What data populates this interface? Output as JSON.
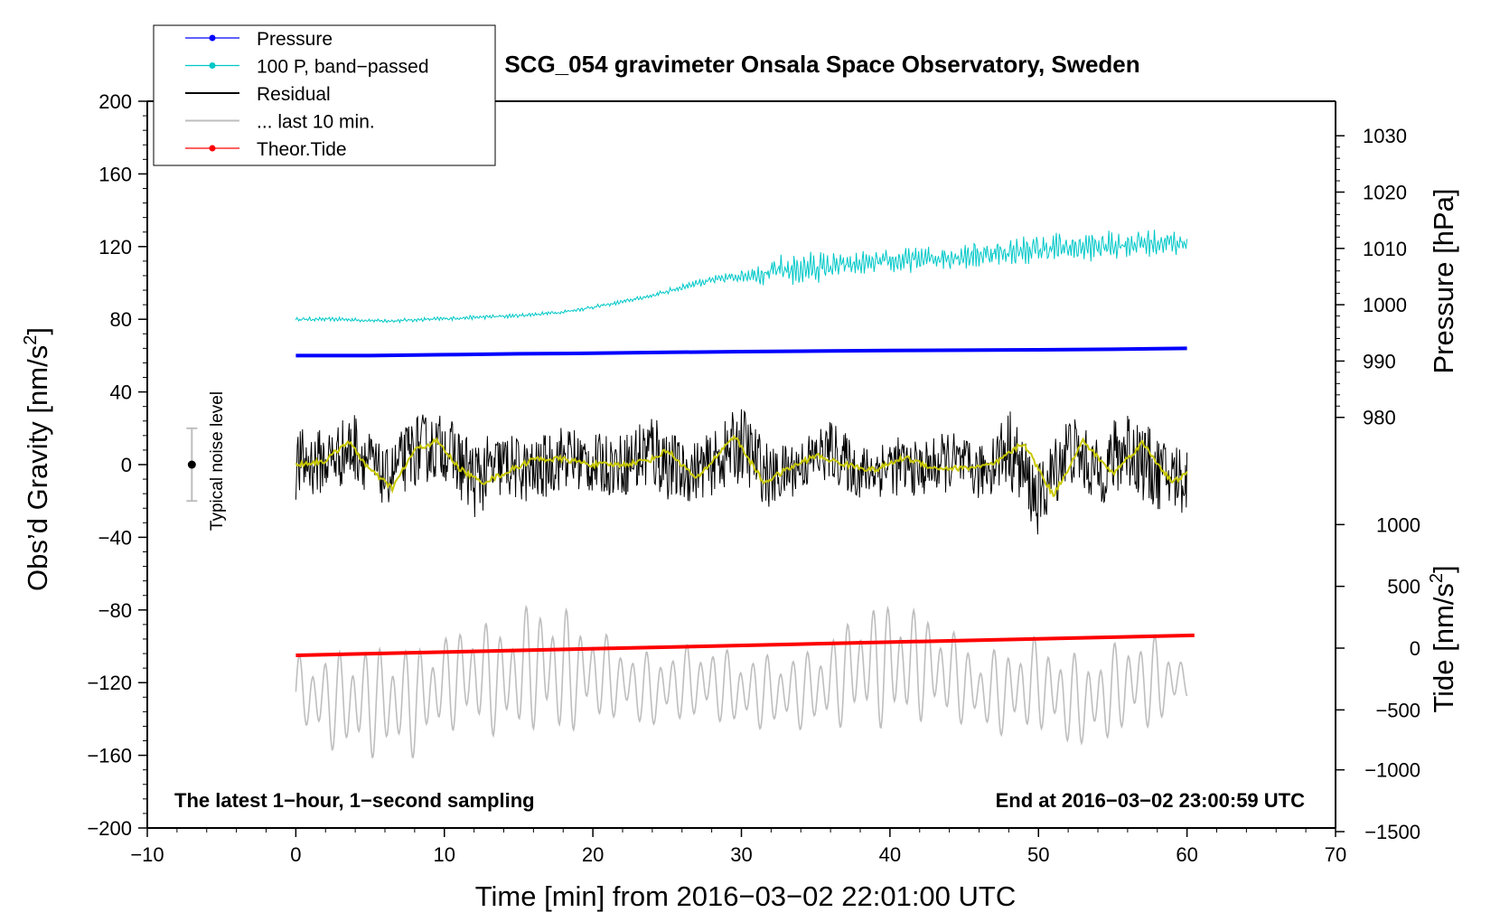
{
  "chart_data": {
    "type": "line",
    "title": "SCG_054 gravimeter Onsala Space Observatory, Sweden",
    "xlabel": "Time [min] from 2016−03−02 22:01:00 UTC",
    "ylabel": "Obs’d Gravity [nm/s",
    "ylabel_sup": "2",
    "ylabel_end": "]",
    "y2label": "Pressure [hPa]",
    "y3label": "Tide [nm/s",
    "y3label_sup": "2",
    "y3label_end": "]",
    "xlim": [
      -10,
      70
    ],
    "ylim": [
      -200,
      200
    ],
    "x_ticks": [
      -10,
      0,
      10,
      20,
      30,
      40,
      50,
      60,
      70
    ],
    "x_tick_labels": [
      "−10",
      "0",
      "10",
      "20",
      "30",
      "40",
      "50",
      "60",
      "70"
    ],
    "y_ticks": [
      200,
      160,
      120,
      80,
      40,
      0,
      -40,
      -80,
      -120,
      -160,
      -200
    ],
    "y_tick_labels": [
      "200",
      "160",
      "120",
      "80",
      "40",
      "0",
      "−40",
      "−80",
      "−120",
      "−160",
      "−200"
    ],
    "pressure_ticks": [
      {
        "value": 1030,
        "gravity": 181
      },
      {
        "value": 1020,
        "gravity": 150
      },
      {
        "value": 1010,
        "gravity": 119
      },
      {
        "value": 1000,
        "gravity": 88
      },
      {
        "value": 990,
        "gravity": 57
      },
      {
        "value": 980,
        "gravity": 26
      }
    ],
    "pressure_tick_labels": [
      "1030",
      "1020",
      "1010",
      "1000",
      "990",
      "980"
    ],
    "tide_ticks": [
      {
        "value": 1000,
        "gravity": -33
      },
      {
        "value": 500,
        "gravity": -67
      },
      {
        "value": 0,
        "gravity": -101
      },
      {
        "value": -500,
        "gravity": -135
      },
      {
        "value": -1000,
        "gravity": -168
      },
      {
        "value": -1500,
        "gravity": -202
      }
    ],
    "tide_tick_labels": [
      "1000",
      "500",
      "0",
      "−500",
      "−1000",
      "−1500"
    ],
    "bottom_left_note": "The latest 1−hour, 1−second sampling",
    "bottom_right_note": "End at 2016−03−02 23:00:59 UTC",
    "noise_label": "Typical noise level",
    "noise_bar": {
      "x": -7,
      "center": 0,
      "low": -20,
      "high": 20
    },
    "legend": [
      {
        "label": "Pressure",
        "color": "#0000ff",
        "marker": true
      },
      {
        "label": "100 P, band−passed",
        "color": "#00c8c8",
        "marker": true
      },
      {
        "label": "Residual",
        "color": "#000000",
        "marker": false
      },
      {
        "label": "... last 10 min.",
        "color": "#bebebe",
        "marker": false
      },
      {
        "label": "Theor.Tide",
        "color": "#ff0000",
        "marker": true
      }
    ],
    "series": [
      {
        "name": "Pressure",
        "color": "#0000ff",
        "x": [
          0,
          5,
          10,
          15,
          20,
          25,
          30,
          35,
          40,
          45,
          50,
          55,
          60
        ],
        "y": [
          60,
          60,
          60.5,
          61,
          61.3,
          61.8,
          62.2,
          62.5,
          62.8,
          63,
          63.2,
          63.5,
          64
        ]
      },
      {
        "name": "100 P, band−passed",
        "color": "#00c8c8",
        "x": [
          0,
          3,
          6,
          9,
          12,
          15,
          18,
          21,
          24,
          27,
          30,
          33,
          36,
          39,
          42,
          45,
          48,
          51,
          54,
          57,
          60
        ],
        "y": [
          80,
          80,
          79,
          80,
          81,
          82,
          84,
          88,
          93,
          100,
          104,
          107,
          109,
          111,
          113,
          115,
          117,
          119,
          120,
          122,
          122
        ],
        "amplitude": [
          1,
          1,
          1,
          1,
          1,
          1,
          1,
          1,
          1,
          2,
          3,
          9,
          7,
          6,
          6,
          7,
          7,
          8,
          7,
          7,
          6
        ]
      },
      {
        "name": "Residual",
        "color": "#000000",
        "x": [
          0,
          2,
          4,
          6,
          8,
          10,
          12,
          14,
          16,
          18,
          20,
          22,
          24,
          26,
          28,
          30,
          32,
          34,
          36,
          38,
          40,
          42,
          44,
          46,
          48,
          50,
          52,
          54,
          56,
          58,
          60
        ],
        "y": [
          0,
          2,
          10,
          -8,
          8,
          10,
          -8,
          0,
          -5,
          5,
          0,
          0,
          8,
          -5,
          0,
          12,
          -8,
          0,
          8,
          -5,
          0,
          -3,
          2,
          -5,
          10,
          -20,
          10,
          -5,
          10,
          -5,
          -8
        ],
        "amplitude": [
          20,
          18,
          20,
          15,
          20,
          18,
          22,
          18,
          18,
          18,
          17,
          17,
          25,
          17,
          17,
          22,
          17,
          15,
          17,
          15,
          17,
          15,
          17,
          15,
          22,
          20,
          20,
          18,
          25,
          20,
          20
        ]
      },
      {
        "name": "Residual smoothed",
        "color": "#c8c800",
        "x": [
          0,
          2,
          3.5,
          5,
          6.5,
          8,
          9.5,
          11,
          12.5,
          14,
          16,
          18,
          20,
          22,
          24,
          25,
          27,
          29.5,
          31.5,
          33,
          35,
          37,
          39,
          41,
          43,
          45,
          47,
          49,
          51,
          53,
          55,
          57,
          59,
          60
        ],
        "y": [
          0,
          2,
          13,
          -3,
          -13,
          8,
          13,
          -2,
          -10,
          -5,
          3,
          3,
          0,
          0,
          3,
          8,
          -8,
          16,
          -10,
          -3,
          5,
          0,
          -3,
          4,
          -2,
          -2,
          0,
          12,
          -17,
          13,
          -5,
          12,
          -10,
          -5
        ]
      },
      {
        "name": "... last 10 min.",
        "color": "#bebebe",
        "x": [
          0,
          2,
          4,
          6,
          8,
          10,
          12,
          14,
          16,
          18,
          20,
          22,
          24,
          26,
          28,
          30,
          32,
          34,
          36,
          38,
          40,
          42,
          44,
          46,
          48,
          50,
          52,
          54,
          56,
          58,
          60
        ],
        "y": [
          -125,
          -130,
          -130,
          -130,
          -130,
          -120,
          -115,
          -120,
          -110,
          -115,
          -115,
          -120,
          -125,
          -120,
          -120,
          -125,
          -125,
          -125,
          -120,
          -110,
          -110,
          -110,
          -115,
          -125,
          -125,
          -120,
          -130,
          -130,
          -120,
          -120,
          -118
        ],
        "amplitude": [
          20,
          25,
          30,
          30,
          30,
          25,
          30,
          30,
          35,
          35,
          25,
          20,
          20,
          20,
          20,
          20,
          20,
          20,
          25,
          30,
          35,
          30,
          25,
          20,
          25,
          25,
          25,
          25,
          25,
          25,
          10
        ]
      },
      {
        "name": "Theor.Tide",
        "color": "#ff0000",
        "x": [
          0,
          60.5
        ],
        "y": [
          -105,
          -94
        ]
      }
    ]
  }
}
